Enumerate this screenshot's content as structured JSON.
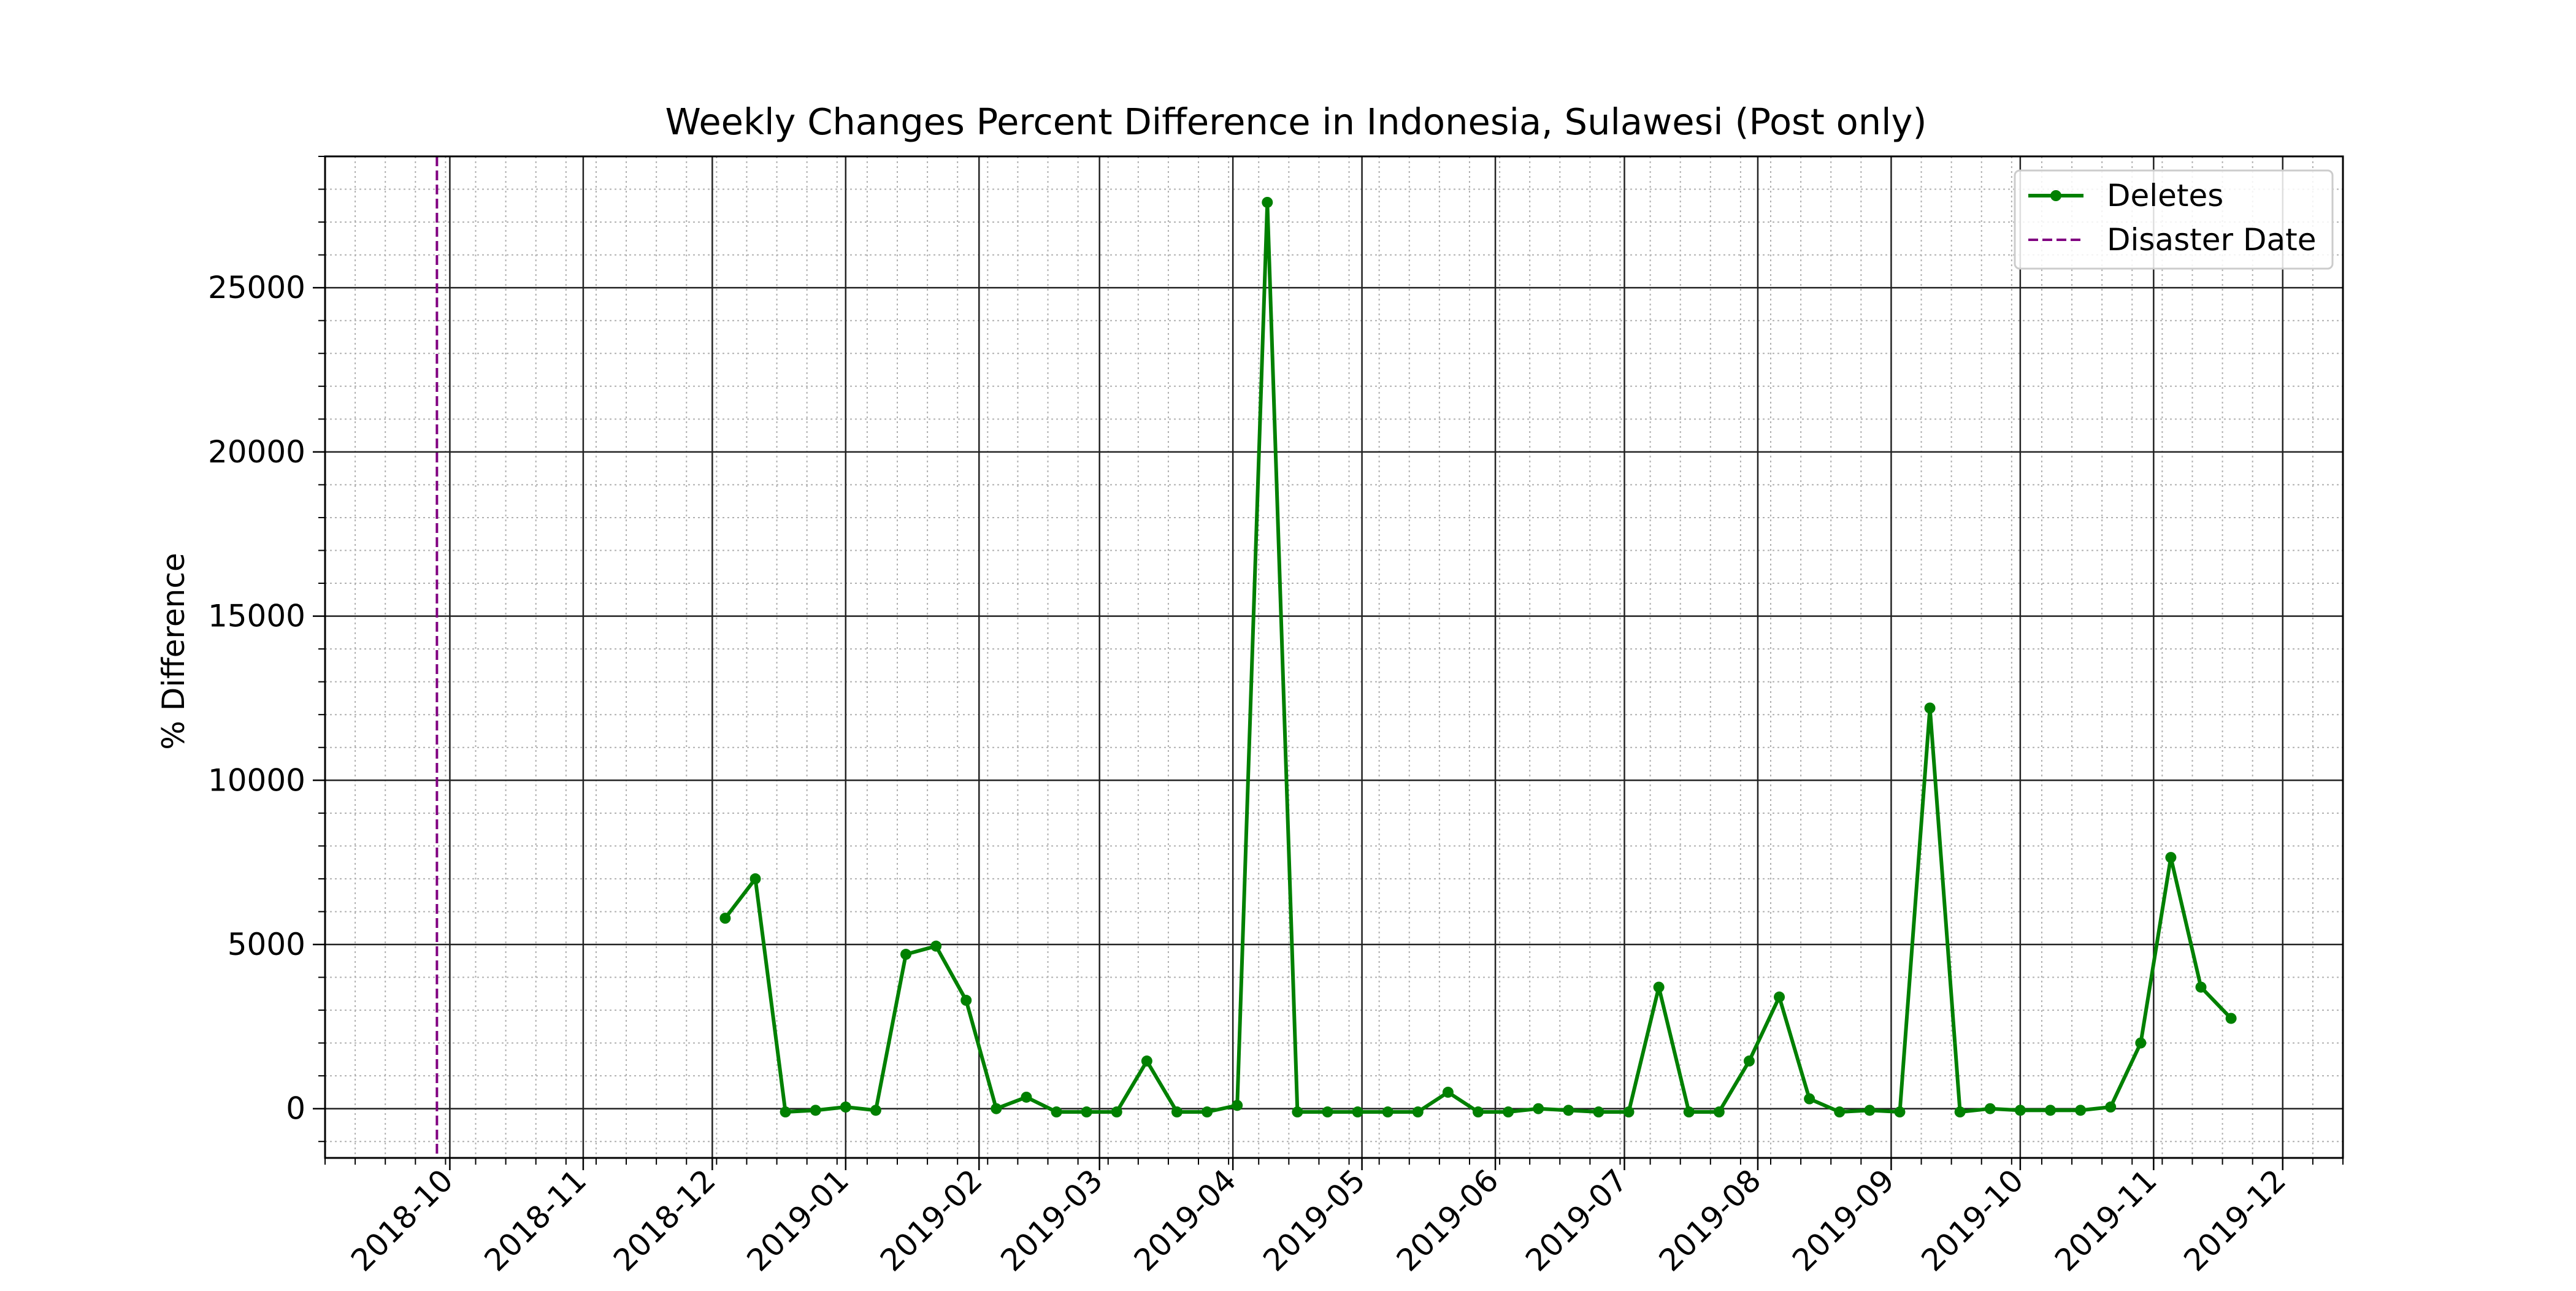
{
  "chart_data": {
    "type": "line",
    "title": "Weekly Changes Percent Difference in Indonesia, Sulawesi (Post only)",
    "xlabel": "",
    "ylabel": "% Difference",
    "x_axis": "date",
    "xlim": [
      "2018-09-02",
      "2019-12-15"
    ],
    "ylim": [
      -1500,
      29000
    ],
    "grid": true,
    "legend_position": "top-right",
    "x_ticks": [
      "2018-10",
      "2018-11",
      "2018-12",
      "2019-01",
      "2019-02",
      "2019-03",
      "2019-04",
      "2019-05",
      "2019-06",
      "2019-07",
      "2019-08",
      "2019-09",
      "2019-10",
      "2019-11",
      "2019-12"
    ],
    "y_ticks": [
      "0",
      "5000",
      "10000",
      "15000",
      "20000",
      "25000"
    ],
    "series": [
      {
        "name": "Deletes",
        "color": "#008000",
        "marker": "circle",
        "x": [
          "2018-12-04",
          "2018-12-11",
          "2018-12-18",
          "2018-12-25",
          "2019-01-01",
          "2019-01-08",
          "2019-01-15",
          "2019-01-22",
          "2019-01-29",
          "2019-02-05",
          "2019-02-12",
          "2019-02-19",
          "2019-02-26",
          "2019-03-05",
          "2019-03-12",
          "2019-03-19",
          "2019-03-26",
          "2019-04-02",
          "2019-04-09",
          "2019-04-16",
          "2019-04-23",
          "2019-04-30",
          "2019-05-07",
          "2019-05-14",
          "2019-05-21",
          "2019-05-28",
          "2019-06-04",
          "2019-06-11",
          "2019-06-18",
          "2019-06-25",
          "2019-07-02",
          "2019-07-09",
          "2019-07-16",
          "2019-07-23",
          "2019-07-30",
          "2019-08-06",
          "2019-08-13",
          "2019-08-20",
          "2019-08-27",
          "2019-09-03",
          "2019-09-10",
          "2019-09-17",
          "2019-09-24",
          "2019-10-01",
          "2019-10-08",
          "2019-10-15",
          "2019-10-22",
          "2019-10-29",
          "2019-11-05",
          "2019-11-12",
          "2019-11-19"
        ],
        "values": [
          5800,
          7000,
          -100,
          -50,
          50,
          -50,
          4700,
          4950,
          3300,
          0,
          350,
          -100,
          -100,
          -100,
          1450,
          -100,
          -100,
          100,
          27600,
          -100,
          -100,
          -100,
          -100,
          -100,
          500,
          -100,
          -100,
          0,
          -50,
          -100,
          -100,
          3700,
          -100,
          -100,
          1450,
          3400,
          300,
          -100,
          -50,
          -100,
          12200,
          -100,
          0,
          -50,
          -50,
          -50,
          50,
          2000,
          7650,
          3700,
          2750
        ]
      }
    ],
    "vertical_lines": [
      {
        "name": "Disaster Date",
        "x": "2018-09-28",
        "color": "#800080",
        "style": "dashed"
      }
    ]
  }
}
